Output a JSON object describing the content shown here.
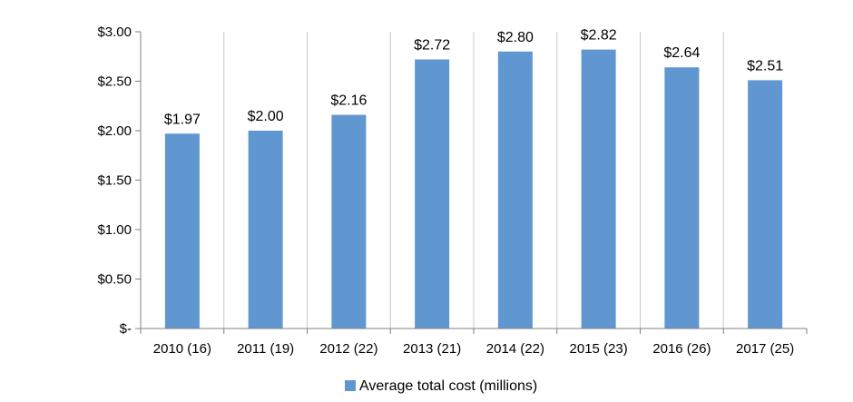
{
  "chart_data": {
    "type": "bar",
    "title": "",
    "xlabel": "",
    "ylabel": "",
    "categories": [
      "2010 (16)",
      "2011 (19)",
      "2012 (22)",
      "2013 (21)",
      "2014 (22)",
      "2015 (23)",
      "2016 (26)",
      "2017 (25)"
    ],
    "series": [
      {
        "name": "Average total cost (millions)",
        "values": [
          1.97,
          2.0,
          2.16,
          2.72,
          2.8,
          2.82,
          2.64,
          2.51
        ],
        "data_labels": [
          "$1.97",
          "$2.00",
          "$2.16",
          "$2.72",
          "$2.80",
          "$2.82",
          "$2.64",
          "$2.51"
        ],
        "color": "#6097D0"
      }
    ],
    "ylim": [
      0,
      3.0
    ],
    "yticks": [
      0,
      0.5,
      1.0,
      1.5,
      2.0,
      2.5,
      3.0
    ],
    "ytick_labels": [
      "$-",
      "$0.50",
      "$1.00",
      "$1.50",
      "$2.00",
      "$2.50",
      "$3.00"
    ],
    "grid": "vertical category separators",
    "legend": {
      "position": "bottom"
    }
  }
}
